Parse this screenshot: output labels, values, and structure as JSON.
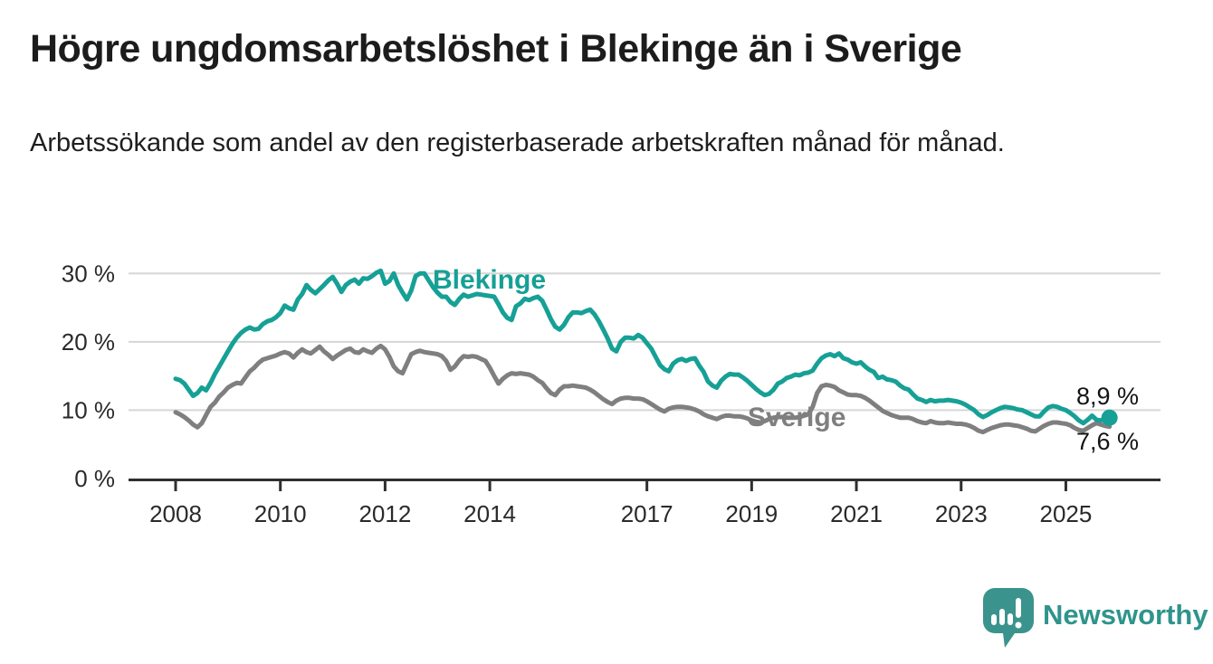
{
  "header": {
    "title": "Högre ungdomsarbetslöshet i Blekinge än i Sverige",
    "subtitle": "Arbetssökande som andel av den registerbaserade arbetskraften månad för månad."
  },
  "colors": {
    "accent_teal": "#16a096",
    "line_gray": "#7f7f7f",
    "grid": "#d6d6d6",
    "axis": "#2f2f2f",
    "text": "#1c1c1c",
    "brand": "#2f948c"
  },
  "chart_data": {
    "type": "line",
    "title": "Högre ungdomsarbetslöshet i Blekinge än i Sverige",
    "subtitle": "Arbetssökande som andel av den registerbaserade arbetskraften månad för månad.",
    "unit": "%",
    "frequency": "monthly",
    "start": "2008-01",
    "end": "2025-11",
    "grid": true,
    "legend_position": "inline-labels",
    "ylim": [
      0,
      32
    ],
    "y_ticks": [
      {
        "value": 30,
        "label": "30 %"
      },
      {
        "value": 20,
        "label": "20 %"
      },
      {
        "value": 10,
        "label": "10 %"
      },
      {
        "value": 0,
        "label": "0 %"
      }
    ],
    "x_ticks": [
      {
        "value": 2008,
        "label": "2008"
      },
      {
        "value": 2010,
        "label": "2010"
      },
      {
        "value": 2012,
        "label": "2012"
      },
      {
        "value": 2014,
        "label": "2014"
      },
      {
        "value": 2017,
        "label": "2017"
      },
      {
        "value": 2019,
        "label": "2019"
      },
      {
        "value": 2021,
        "label": "2021"
      },
      {
        "value": 2023,
        "label": "2023"
      },
      {
        "value": 2025,
        "label": "2025"
      }
    ],
    "series": [
      {
        "name": "Blekinge",
        "color": "#16a096",
        "end_label": "8,9 %",
        "end_value": 8.9,
        "values": [
          14.6,
          14.4,
          13.9,
          13.0,
          12.1,
          12.5,
          13.3,
          12.9,
          14.0,
          15.3,
          16.4,
          17.5,
          18.6,
          19.7,
          20.6,
          21.3,
          21.8,
          22.1,
          21.8,
          21.9,
          22.6,
          23.0,
          23.2,
          23.6,
          24.2,
          25.3,
          24.9,
          24.7,
          26.2,
          27.0,
          28.3,
          27.6,
          27.1,
          27.7,
          28.3,
          29.0,
          29.5,
          28.5,
          27.3,
          28.3,
          28.8,
          29.1,
          28.5,
          29.3,
          29.2,
          29.6,
          30.1,
          30.4,
          28.5,
          28.9,
          30.0,
          28.3,
          27.2,
          26.2,
          27.5,
          29.6,
          30.0,
          30.0,
          29.0,
          28.0,
          27.2,
          26.6,
          26.6,
          25.8,
          25.4,
          26.3,
          26.9,
          26.6,
          26.8,
          27.0,
          26.9,
          26.8,
          26.7,
          26.6,
          25.5,
          24.3,
          23.5,
          23.2,
          25.2,
          25.6,
          26.3,
          26.1,
          26.4,
          26.6,
          26.0,
          24.7,
          23.3,
          22.2,
          21.8,
          22.5,
          23.6,
          24.3,
          24.3,
          24.2,
          24.5,
          24.7,
          24.0,
          23.0,
          21.8,
          20.5,
          19.0,
          18.6,
          20.0,
          20.6,
          20.6,
          20.5,
          21.0,
          20.6,
          19.8,
          19.0,
          17.8,
          16.6,
          16.0,
          15.7,
          16.8,
          17.3,
          17.5,
          17.2,
          17.5,
          17.6,
          16.5,
          15.6,
          14.2,
          13.6,
          13.3,
          14.3,
          14.9,
          15.3,
          15.2,
          15.2,
          14.8,
          14.3,
          13.7,
          13.1,
          12.6,
          12.2,
          12.4,
          13.0,
          13.9,
          14.2,
          14.7,
          14.9,
          15.2,
          15.1,
          15.4,
          15.5,
          15.8,
          16.8,
          17.6,
          18.0,
          18.2,
          17.9,
          18.3,
          17.6,
          17.4,
          17.0,
          16.8,
          17.0,
          16.4,
          15.9,
          15.6,
          14.7,
          14.9,
          14.5,
          14.4,
          14.2,
          13.6,
          13.2,
          13.0,
          12.3,
          11.7,
          11.5,
          11.2,
          11.5,
          11.3,
          11.4,
          11.4,
          11.5,
          11.4,
          11.3,
          11.1,
          10.8,
          10.4,
          10.0,
          9.4,
          9.0,
          9.3,
          9.7,
          10.0,
          10.3,
          10.5,
          10.4,
          10.3,
          10.1,
          10.0,
          9.7,
          9.4,
          9.1,
          9.1,
          9.8,
          10.4,
          10.6,
          10.5,
          10.2,
          10.0,
          9.6,
          9.1,
          8.5,
          8.1,
          8.6,
          9.2,
          8.6,
          8.5,
          8.8,
          8.9
        ]
      },
      {
        "name": "Sverige",
        "color": "#7f7f7f",
        "end_label": "7,6 %",
        "end_value": 7.6,
        "values": [
          9.7,
          9.4,
          9.0,
          8.5,
          7.9,
          7.5,
          8.1,
          9.3,
          10.5,
          11.1,
          12.0,
          12.6,
          13.3,
          13.7,
          14.0,
          13.9,
          14.8,
          15.7,
          16.2,
          16.9,
          17.4,
          17.6,
          17.8,
          18.0,
          18.3,
          18.5,
          18.3,
          17.7,
          18.4,
          18.9,
          18.5,
          18.3,
          18.8,
          19.3,
          18.6,
          18.1,
          17.5,
          18.0,
          18.4,
          18.8,
          19.0,
          18.5,
          18.4,
          18.9,
          18.6,
          18.4,
          19.0,
          19.4,
          18.9,
          17.8,
          16.4,
          15.7,
          15.4,
          16.8,
          18.2,
          18.5,
          18.7,
          18.5,
          18.4,
          18.3,
          18.2,
          17.9,
          17.2,
          15.9,
          16.4,
          17.3,
          17.9,
          17.8,
          17.9,
          17.8,
          17.5,
          17.2,
          16.2,
          15.0,
          13.9,
          14.6,
          15.1,
          15.4,
          15.3,
          15.4,
          15.3,
          15.2,
          14.9,
          14.4,
          14.0,
          13.2,
          12.5,
          12.2,
          13.0,
          13.5,
          13.5,
          13.6,
          13.5,
          13.4,
          13.3,
          13.0,
          12.6,
          12.1,
          11.6,
          11.2,
          10.9,
          11.4,
          11.7,
          11.8,
          11.8,
          11.7,
          11.7,
          11.6,
          11.3,
          10.9,
          10.5,
          10.1,
          9.8,
          10.2,
          10.4,
          10.5,
          10.5,
          10.4,
          10.3,
          10.1,
          9.8,
          9.4,
          9.1,
          8.9,
          8.7,
          9.0,
          9.2,
          9.2,
          9.1,
          9.1,
          9.0,
          8.8,
          8.5,
          8.3,
          8.2,
          8.4,
          8.7,
          8.9,
          9.0,
          9.0,
          8.9,
          8.9,
          8.9,
          9.0,
          9.2,
          9.4,
          10.5,
          12.5,
          13.5,
          13.7,
          13.6,
          13.4,
          12.9,
          12.6,
          12.3,
          12.2,
          12.2,
          12.1,
          11.8,
          11.4,
          10.9,
          10.4,
          9.9,
          9.6,
          9.3,
          9.1,
          8.9,
          8.9,
          8.9,
          8.7,
          8.4,
          8.2,
          8.1,
          8.4,
          8.2,
          8.1,
          8.1,
          8.2,
          8.1,
          8.0,
          8.0,
          7.9,
          7.7,
          7.4,
          7.0,
          6.8,
          7.1,
          7.4,
          7.6,
          7.8,
          7.9,
          7.9,
          7.8,
          7.7,
          7.5,
          7.3,
          7.0,
          6.9,
          7.3,
          7.7,
          8.0,
          8.2,
          8.2,
          8.1,
          8.0,
          7.8,
          7.4,
          7.1,
          7.0,
          7.4,
          7.8,
          8.1,
          7.9,
          7.7,
          7.6
        ]
      }
    ]
  },
  "annotations": {
    "blekinge_label": "Blekinge",
    "sverige_label": "Sverige"
  },
  "footer": {
    "brand": "Newsworthy"
  }
}
